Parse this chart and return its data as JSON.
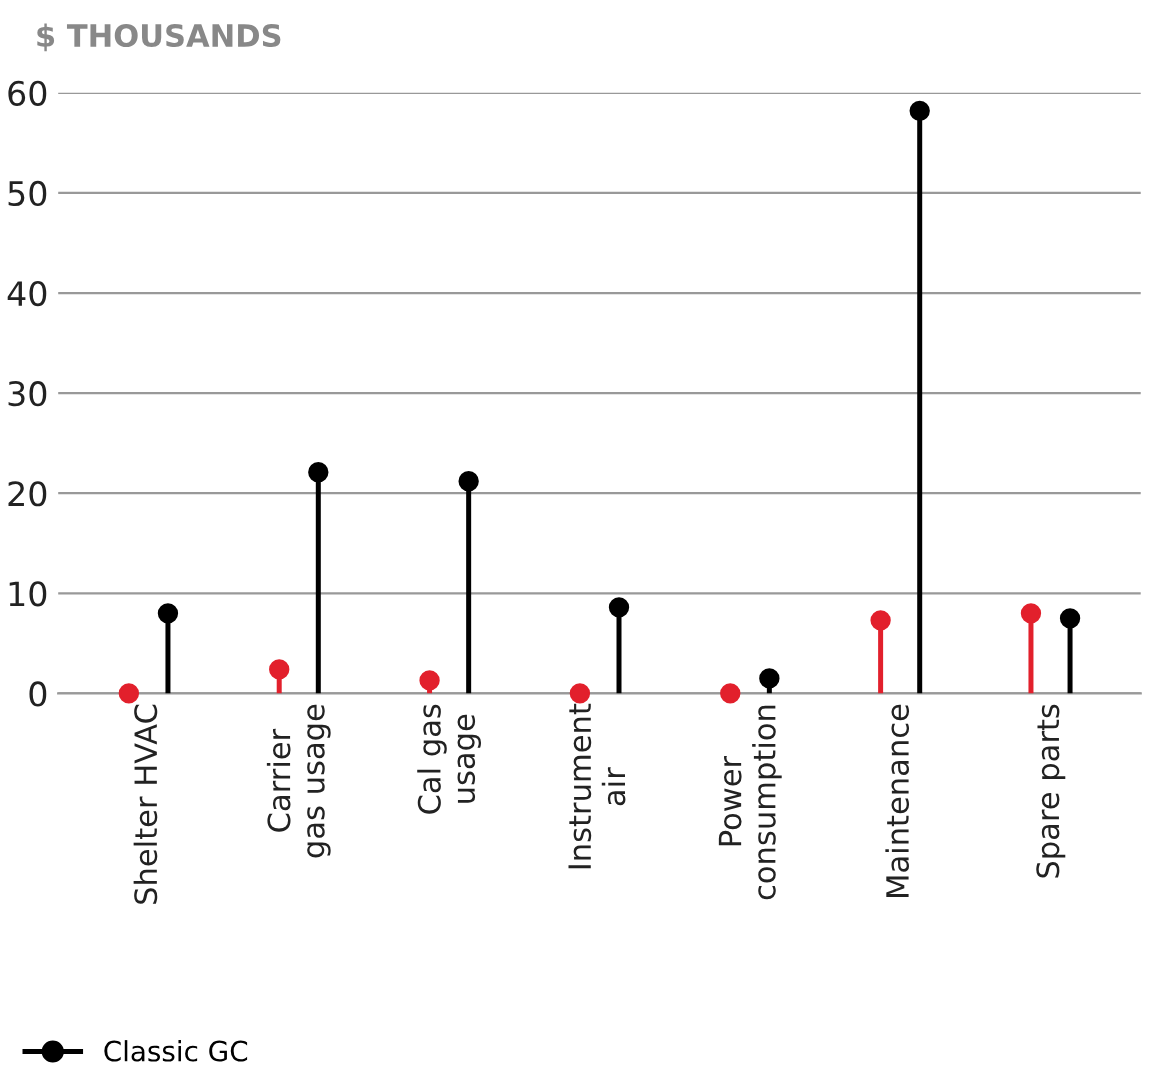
{
  "chart_data": {
    "type": "lollipop",
    "ylabel": "$ THOUSANDS",
    "categories": [
      "Shelter HVAC",
      "Carrier\ngas usage",
      "Cal gas\nusage",
      "Instrument\nair",
      "Power\nconsumption",
      "Maintenance",
      "Spare parts"
    ],
    "series": [
      {
        "color": "#e2202c",
        "values": [
          0,
          2.4,
          1.3,
          0,
          0,
          7.3,
          8.0
        ]
      },
      {
        "name": "Classic GC",
        "color": "#000000",
        "values": [
          8.0,
          22.1,
          21.2,
          8.6,
          1.5,
          58.2,
          7.5
        ]
      }
    ],
    "ylim": [
      0,
      60
    ],
    "yticks": [
      0,
      10,
      20,
      30,
      40,
      50,
      60
    ],
    "grid": "y",
    "legend": "bottom left",
    "marker": "circle"
  }
}
